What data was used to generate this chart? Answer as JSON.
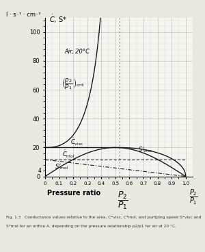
{
  "title_unit": "l · s⁻¹ · cm⁻²",
  "air_label": "Air, 20°C",
  "p_crit": 0.528,
  "C_visc_const": 20.0,
  "C_mol_const": 11.6,
  "S_mol_slope": 11.6,
  "ylim": [
    0,
    110
  ],
  "xlim": [
    0,
    1.05
  ],
  "background_color": "#f5f5f0",
  "grid_color": "#aaaaaa",
  "line_color": "#1a1a1a",
  "figure_bg": "#e8e8e0",
  "caption": "Fig. 1.3   Conductance values relative to the area, C*visc, C*mol, and pumping speed S*visc and S*mol for an orifice A, depending on the pressure relationship p2/p1 for air at 20 °C."
}
